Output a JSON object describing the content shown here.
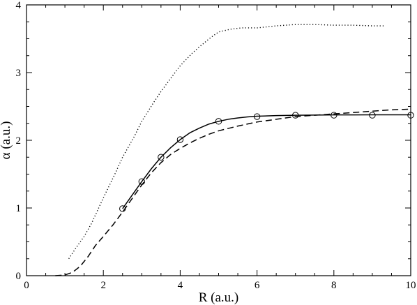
{
  "chart_data": {
    "type": "line",
    "title": "",
    "xlabel": "R (a.u.)",
    "ylabel": "α (a.u.)",
    "xlim": [
      0,
      10
    ],
    "ylim": [
      0,
      4
    ],
    "xticks": [
      0,
      2,
      4,
      6,
      8,
      10
    ],
    "yticks": [
      0,
      1,
      2,
      3,
      4
    ],
    "minor_xticks_per_major": 4,
    "minor_yticks_per_major": 4,
    "grid": false,
    "legend": "none",
    "series": [
      {
        "style": "dotted",
        "color": "#000000",
        "x": [
          1.1,
          1.3,
          1.5,
          1.7,
          2.0,
          2.3,
          2.5,
          2.8,
          3.0,
          3.3,
          3.5,
          3.8,
          4.0,
          4.3,
          4.5,
          4.8,
          5.0,
          5.3,
          5.6,
          6.0,
          6.5,
          7.0,
          7.5,
          8.0,
          8.5,
          9.0,
          9.3
        ],
        "y": [
          0.25,
          0.42,
          0.58,
          0.78,
          1.15,
          1.5,
          1.75,
          2.05,
          2.28,
          2.55,
          2.72,
          2.95,
          3.1,
          3.28,
          3.38,
          3.52,
          3.6,
          3.64,
          3.66,
          3.66,
          3.69,
          3.71,
          3.71,
          3.7,
          3.7,
          3.69,
          3.69
        ]
      },
      {
        "style": "solid",
        "color": "#000000",
        "x": [
          2.5,
          2.75,
          3.0,
          3.25,
          3.5,
          3.75,
          4.0,
          4.25,
          4.5,
          4.75,
          5.0,
          5.25,
          5.5,
          5.75,
          6.0,
          6.5,
          7.0,
          7.5,
          8.0,
          8.5,
          9.0,
          9.5,
          10.0
        ],
        "y": [
          0.99,
          1.19,
          1.39,
          1.58,
          1.75,
          1.89,
          2.01,
          2.11,
          2.18,
          2.24,
          2.28,
          2.31,
          2.33,
          2.345,
          2.355,
          2.365,
          2.37,
          2.373,
          2.375,
          2.375,
          2.376,
          2.376,
          2.376
        ]
      },
      {
        "style": "dashed",
        "color": "#000000",
        "x": [
          0.75,
          1.0,
          1.2,
          1.4,
          1.6,
          1.8,
          2.0,
          2.25,
          2.5,
          2.75,
          3.0,
          3.25,
          3.5,
          3.75,
          4.0,
          4.25,
          4.5,
          4.75,
          5.0,
          5.5,
          6.0,
          6.5,
          7.0,
          7.5,
          8.0,
          8.5,
          9.0,
          9.5,
          10.0
        ],
        "y": [
          0.0,
          0.01,
          0.05,
          0.14,
          0.28,
          0.45,
          0.58,
          0.75,
          0.94,
          1.14,
          1.34,
          1.52,
          1.67,
          1.79,
          1.88,
          1.96,
          2.03,
          2.09,
          2.14,
          2.21,
          2.27,
          2.31,
          2.35,
          2.37,
          2.39,
          2.41,
          2.43,
          2.45,
          2.46
        ]
      },
      {
        "style": "markers",
        "marker": "open-circle",
        "color": "#000000",
        "x": [
          2.5,
          3.0,
          3.5,
          4.0,
          5.0,
          6.0,
          7.0,
          8.0,
          9.0,
          10.0
        ],
        "y": [
          0.99,
          1.39,
          1.75,
          2.01,
          2.28,
          2.35,
          2.37,
          2.37,
          2.37,
          2.37
        ]
      }
    ]
  }
}
